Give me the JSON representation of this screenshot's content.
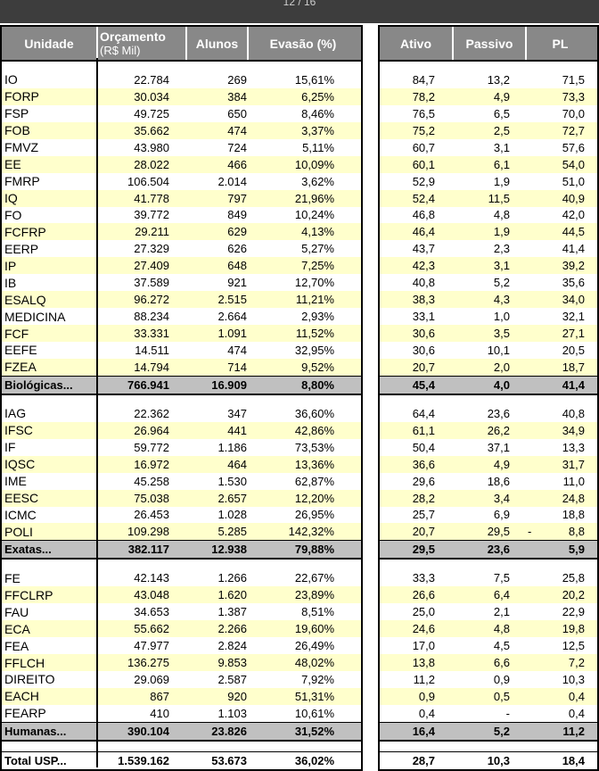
{
  "page_indicator": "12 / 16",
  "headers": {
    "unidade": "Unidade",
    "orcamento": "Orçamento",
    "orcamento_unit": "(R$ Mil)",
    "alunos": "Alunos",
    "evasao": "Evasão (%)",
    "ativo": "Ativo",
    "passivo": "Passivo",
    "pl": "PL"
  },
  "groups": [
    {
      "rows": [
        [
          "IO",
          "22.784",
          "269",
          "15,61%",
          "84,7",
          "13,2",
          "71,5",
          ""
        ],
        [
          "FORP",
          "30.034",
          "384",
          "6,25%",
          "78,2",
          "4,9",
          "73,3",
          ""
        ],
        [
          "FSP",
          "49.725",
          "650",
          "8,46%",
          "76,5",
          "6,5",
          "70,0",
          ""
        ],
        [
          "FOB",
          "35.662",
          "474",
          "3,37%",
          "75,2",
          "2,5",
          "72,7",
          ""
        ],
        [
          "FMVZ",
          "43.980",
          "724",
          "5,11%",
          "60,7",
          "3,1",
          "57,6",
          ""
        ],
        [
          "EE",
          "28.022",
          "466",
          "10,09%",
          "60,1",
          "6,1",
          "54,0",
          ""
        ],
        [
          "FMRP",
          "106.504",
          "2.014",
          "3,62%",
          "52,9",
          "1,9",
          "51,0",
          ""
        ],
        [
          "IQ",
          "41.778",
          "797",
          "21,96%",
          "52,4",
          "11,5",
          "40,9",
          ""
        ],
        [
          "FO",
          "39.772",
          "849",
          "10,24%",
          "46,8",
          "4,8",
          "42,0",
          ""
        ],
        [
          "FCFRP",
          "29.211",
          "629",
          "4,13%",
          "46,4",
          "1,9",
          "44,5",
          ""
        ],
        [
          "EERP",
          "27.329",
          "626",
          "5,27%",
          "43,7",
          "2,3",
          "41,4",
          ""
        ],
        [
          "IP",
          "27.409",
          "648",
          "7,25%",
          "42,3",
          "3,1",
          "39,2",
          ""
        ],
        [
          "IB",
          "37.589",
          "921",
          "12,70%",
          "40,8",
          "5,2",
          "35,6",
          ""
        ],
        [
          "ESALQ",
          "96.272",
          "2.515",
          "11,21%",
          "38,3",
          "4,3",
          "34,0",
          ""
        ],
        [
          "MEDICINA",
          "88.234",
          "2.664",
          "2,93%",
          "33,1",
          "1,0",
          "32,1",
          ""
        ],
        [
          "FCF",
          "33.331",
          "1.091",
          "11,52%",
          "30,6",
          "3,5",
          "27,1",
          ""
        ],
        [
          "EEFE",
          "14.511",
          "474",
          "32,95%",
          "30,6",
          "10,1",
          "20,5",
          ""
        ],
        [
          "FZEA",
          "14.794",
          "714",
          "9,52%",
          "20,7",
          "2,0",
          "18,7",
          ""
        ]
      ],
      "total": [
        "Biológicas...",
        "766.941",
        "16.909",
        "8,80%",
        "45,4",
        "4,0",
        "41,4",
        ""
      ]
    },
    {
      "rows": [
        [
          "IAG",
          "22.362",
          "347",
          "36,60%",
          "64,4",
          "23,6",
          "40,8",
          ""
        ],
        [
          "IFSC",
          "26.964",
          "441",
          "42,86%",
          "61,1",
          "26,2",
          "34,9",
          ""
        ],
        [
          "IF",
          "59.772",
          "1.186",
          "73,53%",
          "50,4",
          "37,1",
          "13,3",
          ""
        ],
        [
          "IQSC",
          "16.972",
          "464",
          "13,36%",
          "36,6",
          "4,9",
          "31,7",
          ""
        ],
        [
          "IME",
          "45.258",
          "1.530",
          "62,87%",
          "29,6",
          "18,6",
          "11,0",
          ""
        ],
        [
          "EESC",
          "75.038",
          "2.657",
          "12,20%",
          "28,2",
          "3,4",
          "24,8",
          ""
        ],
        [
          "ICMC",
          "26.453",
          "1.028",
          "26,95%",
          "25,7",
          "6,9",
          "18,8",
          ""
        ],
        [
          "POLI",
          "109.298",
          "5.285",
          "142,32%",
          "20,7",
          "29,5",
          "8,8",
          "-"
        ]
      ],
      "total": [
        "Exatas...",
        "382.117",
        "12.938",
        "79,88%",
        "29,5",
        "23,6",
        "5,9",
        ""
      ]
    },
    {
      "rows": [
        [
          "FE",
          "42.143",
          "1.266",
          "22,67%",
          "33,3",
          "7,5",
          "25,8",
          ""
        ],
        [
          "FFCLRP",
          "43.048",
          "1.620",
          "23,89%",
          "26,6",
          "6,4",
          "20,2",
          ""
        ],
        [
          "FAU",
          "34.653",
          "1.387",
          "8,51%",
          "25,0",
          "2,1",
          "22,9",
          ""
        ],
        [
          "ECA",
          "55.662",
          "2.266",
          "19,60%",
          "24,6",
          "4,8",
          "19,8",
          ""
        ],
        [
          "FEA",
          "47.977",
          "2.824",
          "26,49%",
          "17,0",
          "4,5",
          "12,5",
          ""
        ],
        [
          "FFLCH",
          "136.275",
          "9.853",
          "48,02%",
          "13,8",
          "6,6",
          "7,2",
          ""
        ],
        [
          "DIREITO",
          "29.069",
          "2.587",
          "7,92%",
          "11,2",
          "0,9",
          "10,3",
          ""
        ],
        [
          "EACH",
          "867",
          "920",
          "51,31%",
          "0,9",
          "0,5",
          "0,4",
          ""
        ],
        [
          "FEARP",
          "410",
          "1.103",
          "10,61%",
          "0,4",
          "-",
          "0,4",
          ""
        ]
      ],
      "total": [
        "Humanas...",
        "390.104",
        "23.826",
        "31,52%",
        "16,4",
        "5,2",
        "11,2",
        ""
      ]
    }
  ],
  "grand_total": [
    "Total USP...",
    "1.539.162",
    "53.673",
    "36,02%",
    "28,7",
    "10,3",
    "18,4",
    ""
  ]
}
